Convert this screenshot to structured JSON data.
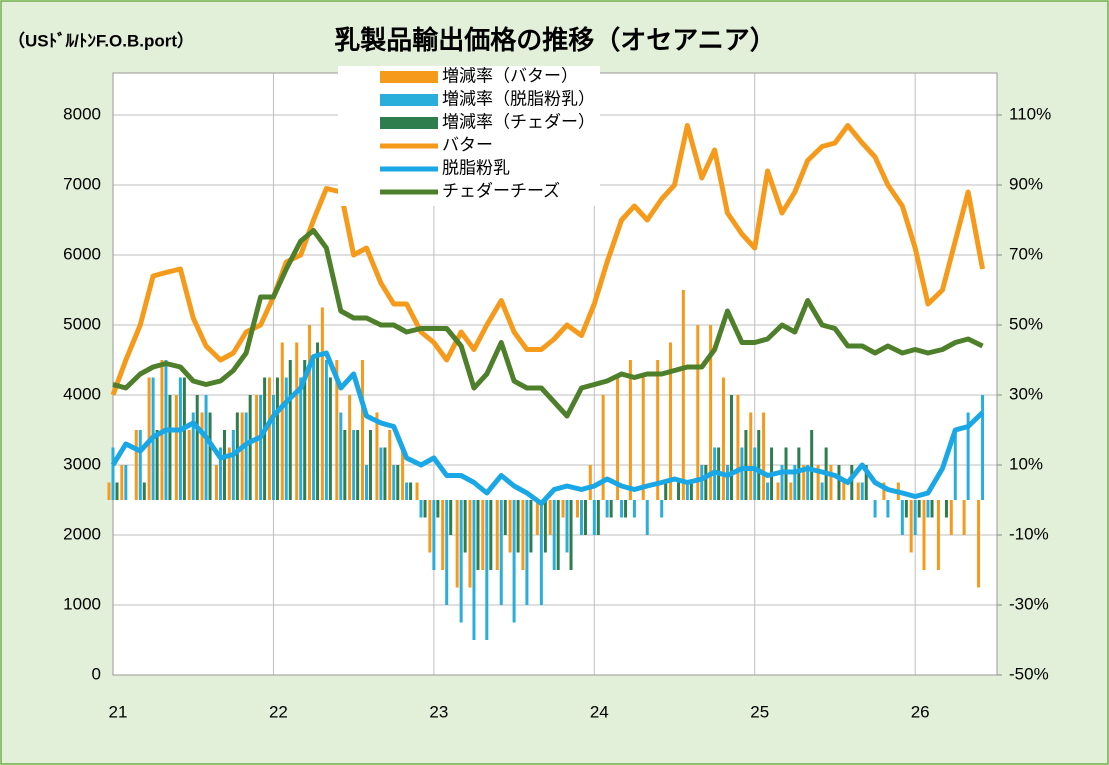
{
  "chart_data": {
    "type": "combo",
    "title": "乳製品輸出価格の推移（オセアニア）",
    "y_label": "（USﾄﾞﾙ/ﾄﾝF.O.B.port）",
    "x": [
      21.0,
      21.08,
      21.17,
      21.25,
      21.33,
      21.42,
      21.5,
      21.58,
      21.67,
      21.75,
      21.83,
      21.92,
      22.0,
      22.08,
      22.17,
      22.25,
      22.33,
      22.42,
      22.5,
      22.58,
      22.67,
      22.75,
      22.83,
      22.92,
      23.0,
      23.08,
      23.17,
      23.25,
      23.33,
      23.42,
      23.5,
      23.58,
      23.67,
      23.75,
      23.83,
      23.92,
      24.0,
      24.08,
      24.17,
      24.25,
      24.33,
      24.42,
      24.5,
      24.58,
      24.67,
      24.75,
      24.83,
      24.92,
      25.0,
      25.08,
      25.17,
      25.25,
      25.33,
      25.42,
      25.5,
      25.58,
      25.67,
      25.75,
      25.83,
      25.92,
      26.0,
      26.08,
      26.17,
      26.25,
      26.33,
      26.42
    ],
    "xlim": [
      21,
      26.51
    ],
    "xticks": [
      21,
      22,
      23,
      24,
      25,
      26
    ],
    "ylim": [
      0,
      8600
    ],
    "yticks": [
      0,
      1000,
      2000,
      3000,
      4000,
      5000,
      6000,
      7000,
      8000
    ],
    "y2lim": [
      -50,
      122
    ],
    "y2ticks": [
      {
        "value": -50,
        "label": "-50%"
      },
      {
        "value": -30,
        "label": "-30%"
      },
      {
        "value": -10,
        "label": "-10%"
      },
      {
        "value": 10,
        "label": "10%"
      },
      {
        "value": 30,
        "label": "30%"
      },
      {
        "value": 50,
        "label": "50%"
      },
      {
        "value": 70,
        "label": "70%"
      },
      {
        "value": 90,
        "label": "90%"
      },
      {
        "value": 110,
        "label": "110%"
      }
    ],
    "grid": true,
    "series": [
      {
        "name": "増減率（バター）",
        "kind": "bar",
        "axis": "y2",
        "color": "#f59a1a",
        "values": [
          5,
          10,
          20,
          35,
          40,
          30,
          20,
          25,
          10,
          15,
          25,
          30,
          35,
          45,
          45,
          50,
          55,
          40,
          30,
          40,
          25,
          20,
          15,
          5,
          -15,
          -20,
          -25,
          -25,
          -20,
          -20,
          -15,
          -20,
          -10,
          -10,
          -5,
          -5,
          10,
          30,
          35,
          40,
          35,
          40,
          45,
          60,
          50,
          50,
          35,
          30,
          25,
          25,
          5,
          5,
          10,
          10,
          10,
          5,
          5,
          0,
          5,
          5,
          -15,
          -20,
          -20,
          -10,
          -10,
          -25
        ]
      },
      {
        "name": "増減率（脱脂粉乳）",
        "kind": "bar",
        "axis": "y2",
        "color": "#29aedb",
        "values": [
          15,
          10,
          20,
          35,
          40,
          35,
          25,
          30,
          15,
          20,
          25,
          30,
          30,
          35,
          35,
          40,
          40,
          25,
          20,
          10,
          15,
          10,
          5,
          -5,
          -20,
          -30,
          -35,
          -40,
          -40,
          -30,
          -35,
          -30,
          -30,
          -20,
          -15,
          -10,
          -10,
          -5,
          -5,
          -5,
          -10,
          -5,
          0,
          5,
          10,
          15,
          10,
          15,
          15,
          5,
          10,
          10,
          10,
          5,
          0,
          0,
          5,
          -5,
          -5,
          -10,
          -10,
          -5,
          0,
          20,
          25,
          30
        ]
      },
      {
        "name": "増減率（チェダー）",
        "kind": "bar",
        "axis": "y2",
        "color": "#2e7d4f",
        "values": [
          5,
          0,
          5,
          20,
          30,
          35,
          30,
          25,
          20,
          25,
          30,
          35,
          35,
          40,
          40,
          45,
          35,
          20,
          20,
          20,
          15,
          10,
          5,
          -5,
          -5,
          -10,
          -15,
          -20,
          -20,
          -10,
          -15,
          -15,
          -15,
          -20,
          -20,
          -10,
          -10,
          -5,
          -5,
          0,
          0,
          5,
          5,
          5,
          10,
          15,
          30,
          20,
          20,
          15,
          15,
          15,
          20,
          15,
          10,
          10,
          10,
          0,
          0,
          -5,
          -5,
          -5,
          -5,
          0,
          0,
          0
        ]
      },
      {
        "name": "バター",
        "kind": "line",
        "color": "#f59a1a",
        "values": [
          4000,
          4500,
          5000,
          5700,
          5750,
          5800,
          5100,
          4700,
          4500,
          4600,
          4900,
          5000,
          5400,
          5900,
          6000,
          6500,
          6950,
          6900,
          6000,
          6100,
          5600,
          5300,
          5300,
          4900,
          4750,
          4500,
          4900,
          4650,
          5000,
          5350,
          4900,
          4650,
          4650,
          4800,
          5000,
          4850,
          5300,
          5900,
          6500,
          6700,
          6500,
          6800,
          7000,
          7850,
          7100,
          7500,
          6600,
          6300,
          6100,
          7200,
          6600,
          6900,
          7350,
          7550,
          7600,
          7850,
          7600,
          7400,
          7000,
          6700,
          6100,
          5300,
          5500,
          6200,
          6900,
          5800
        ]
      },
      {
        "name": "脱脂粉乳",
        "kind": "line",
        "color": "#1aa7e6",
        "values": [
          3000,
          3300,
          3200,
          3400,
          3500,
          3500,
          3600,
          3400,
          3100,
          3150,
          3300,
          3400,
          3700,
          3900,
          4100,
          4550,
          4600,
          4100,
          4300,
          3700,
          3600,
          3550,
          3100,
          3000,
          3100,
          2850,
          2850,
          2750,
          2600,
          2850,
          2700,
          2600,
          2450,
          2650,
          2700,
          2650,
          2700,
          2800,
          2700,
          2650,
          2700,
          2750,
          2800,
          2750,
          2800,
          2900,
          2850,
          2950,
          2950,
          2850,
          2900,
          2900,
          2950,
          2900,
          2850,
          2750,
          3000,
          2750,
          2650,
          2600,
          2550,
          2600,
          2950,
          3500,
          3550,
          3750
        ]
      },
      {
        "name": "チェダーチーズ",
        "kind": "line",
        "color": "#4e7f2a",
        "values": [
          4150,
          4100,
          4300,
          4400,
          4450,
          4400,
          4200,
          4150,
          4200,
          4350,
          4600,
          5400,
          5400,
          5800,
          6200,
          6350,
          6100,
          5200,
          5100,
          5100,
          5000,
          5000,
          4900,
          4950,
          4950,
          4950,
          4700,
          4100,
          4300,
          4750,
          4200,
          4100,
          4100,
          3900,
          3700,
          4100,
          4150,
          4200,
          4300,
          4250,
          4300,
          4300,
          4350,
          4400,
          4400,
          4650,
          5200,
          4750,
          4750,
          4800,
          5000,
          4900,
          5350,
          5000,
          4950,
          4700,
          4700,
          4600,
          4700,
          4600,
          4650,
          4600,
          4650,
          4750,
          4800,
          4700
        ]
      }
    ]
  }
}
